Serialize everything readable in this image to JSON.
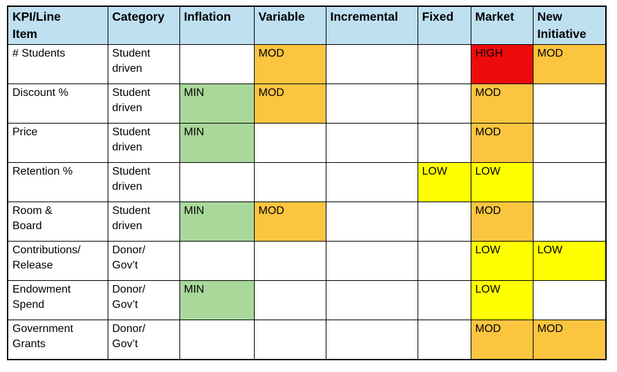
{
  "table": {
    "columns": [
      "KPI/Line\nItem",
      "Category",
      "Inflation",
      "Variable",
      "Incremental",
      "Fixed",
      "Market",
      "New\nInitiative"
    ],
    "rating_column_keys": [
      "inflation",
      "variable",
      "incremental",
      "fixed",
      "market",
      "new_initiative"
    ],
    "rows": [
      {
        "kpi": "# Students",
        "category": "Student\ndriven",
        "ratings": {
          "inflation": "",
          "variable": "MOD",
          "incremental": "",
          "fixed": "",
          "market": "HIGH",
          "new_initiative": "MOD"
        }
      },
      {
        "kpi": "Discount %",
        "category": "Student\ndriven",
        "ratings": {
          "inflation": "MIN",
          "variable": "MOD",
          "incremental": "",
          "fixed": "",
          "market": "MOD",
          "new_initiative": ""
        }
      },
      {
        "kpi": "Price",
        "category": "Student\ndriven",
        "ratings": {
          "inflation": "MIN",
          "variable": "",
          "incremental": "",
          "fixed": "",
          "market": "MOD",
          "new_initiative": ""
        }
      },
      {
        "kpi": "Retention %",
        "category": "Student\ndriven",
        "ratings": {
          "inflation": "",
          "variable": "",
          "incremental": "",
          "fixed": "LOW",
          "market": "LOW",
          "new_initiative": ""
        }
      },
      {
        "kpi": "Room &\nBoard",
        "category": "Student\ndriven",
        "ratings": {
          "inflation": "MIN",
          "variable": "MOD",
          "incremental": "",
          "fixed": "",
          "market": "MOD",
          "new_initiative": ""
        }
      },
      {
        "kpi": "Contributions/\nRelease",
        "category": "Donor/\nGov’t",
        "ratings": {
          "inflation": "",
          "variable": "",
          "incremental": "",
          "fixed": "",
          "market": "LOW",
          "new_initiative": "LOW"
        }
      },
      {
        "kpi": "Endowment\nSpend",
        "category": "Donor/\nGov’t",
        "ratings": {
          "inflation": "MIN",
          "variable": "",
          "incremental": "",
          "fixed": "",
          "market": "LOW",
          "new_initiative": ""
        }
      },
      {
        "kpi": "Government\nGrants",
        "category": "Donor/\nGov’t",
        "ratings": {
          "inflation": "",
          "variable": "",
          "incremental": "",
          "fixed": "",
          "market": "MOD",
          "new_initiative": "MOD"
        }
      }
    ]
  },
  "colors": {
    "header_bg": "#BEE0F1",
    "border": "#000000",
    "rating_bg": {
      "MIN": "#A9D89B",
      "MOD": "#FBC540",
      "LOW": "#FFFF00",
      "HIGH": "#EE0B0B"
    }
  }
}
